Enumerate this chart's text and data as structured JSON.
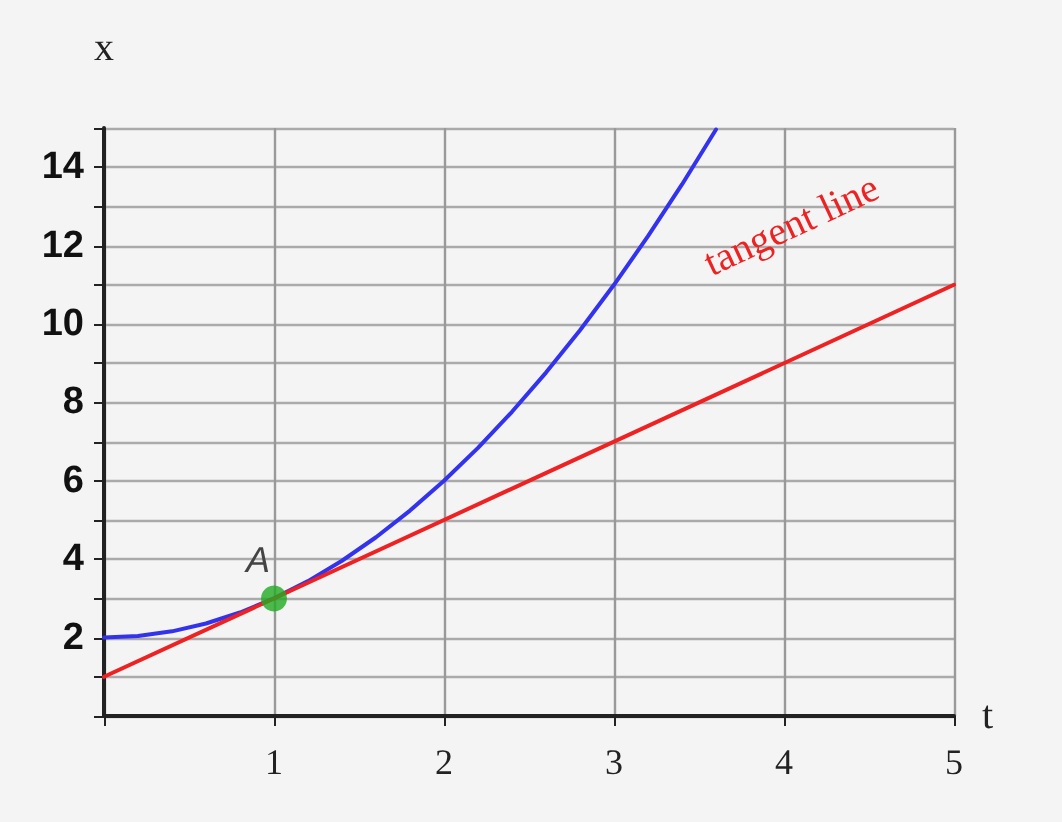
{
  "chart_data": {
    "type": "line",
    "xlabel": "t",
    "ylabel": "x",
    "xlim": [
      0,
      5
    ],
    "xticks": [
      {
        "value": 0,
        "label": null
      },
      1,
      2,
      3,
      4,
      5
    ],
    "ylim": [
      0,
      15
    ],
    "yticks": [
      {
        "value": 0,
        "label": null
      },
      {
        "value": 1,
        "label": null
      },
      2,
      {
        "value": 3,
        "label": null
      },
      4,
      {
        "value": 5,
        "label": null
      },
      6,
      {
        "value": 7,
        "label": null
      },
      8,
      {
        "value": 9,
        "label": null
      },
      10,
      {
        "value": 11,
        "label": null
      },
      12,
      {
        "value": 13,
        "label": null
      },
      14,
      {
        "value": 15,
        "label": null
      }
    ],
    "grid": true,
    "marker": "none",
    "line_style": "solid",
    "series": [
      {
        "color": "#3333ee",
        "x": [
          0,
          0.2,
          0.4,
          0.6,
          0.8,
          1,
          1.2,
          1.4,
          1.6,
          1.8,
          2,
          2.2,
          2.4,
          2.6,
          2.8,
          3,
          3.2,
          3.4,
          3.6
        ],
        "values": [
          2,
          2.04,
          2.16,
          2.36,
          2.64,
          3,
          3.44,
          3.96,
          4.56,
          5.24,
          6,
          6.84,
          7.76,
          8.76,
          9.84,
          11,
          12.24,
          13.56,
          14.96
        ]
      },
      {
        "color": "#ee2222",
        "x": [
          0,
          5
        ],
        "values": [
          1,
          11
        ]
      },
      {
        "type": "scatter",
        "marker": "circle",
        "color": "#22aa22",
        "x": [
          1
        ],
        "values": [
          3
        ]
      }
    ],
    "annotations": [
      {
        "text": "A",
        "x": 1,
        "y": 3
      },
      {
        "text": "tangent line",
        "x": 4.3,
        "y": 9.6
      }
    ]
  }
}
